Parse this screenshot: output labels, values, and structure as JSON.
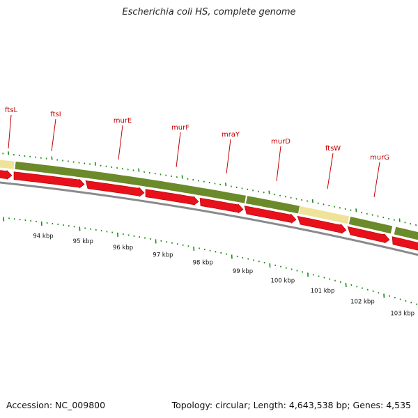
{
  "title": "Escherichia coli HS, complete genome",
  "footer": {
    "accession": "Accession: NC_009800",
    "info": "Topology: circular; Length: 4,643,538 bp; Genes: 4,535"
  },
  "colors": {
    "gene_arrow": "#e8101a",
    "operon_green": "#6b8a2a",
    "operon_yellow": "#efe39a",
    "tick_green": "#1a8a1a",
    "label_red": "#c00000",
    "backbone": "#8a8a8a"
  },
  "genes": [
    {
      "name": "ftsL"
    },
    {
      "name": "ftsI"
    },
    {
      "name": "murE"
    },
    {
      "name": "murF"
    },
    {
      "name": "mraY"
    },
    {
      "name": "murD"
    },
    {
      "name": "ftsW"
    },
    {
      "name": "murG"
    }
  ],
  "kbp_labels": [
    "94 kbp",
    "95 kbp",
    "96 kbp",
    "97 kbp",
    "98 kbp",
    "99 kbp",
    "100 kbp",
    "101 kbp",
    "102 kbp",
    "103 kbp"
  ]
}
